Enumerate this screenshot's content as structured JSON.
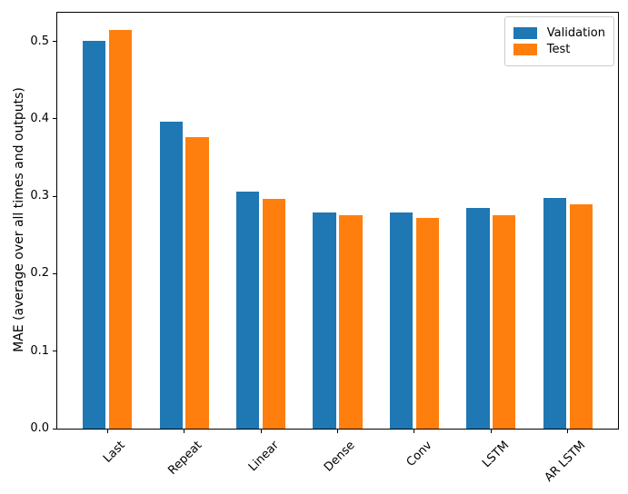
{
  "chart_data": {
    "type": "bar",
    "title": "",
    "xlabel": "",
    "ylabel": "MAE (average over all times and outputs)",
    "categories": [
      "Last",
      "Repeat",
      "Linear",
      "Dense",
      "Conv",
      "LSTM",
      "AR LSTM"
    ],
    "series": [
      {
        "name": "Validation",
        "color": "#1f77b4",
        "values": [
          0.501,
          0.396,
          0.306,
          0.279,
          0.279,
          0.285,
          0.298
        ]
      },
      {
        "name": "Test",
        "color": "#ff7f0e",
        "values": [
          0.515,
          0.376,
          0.297,
          0.275,
          0.272,
          0.276,
          0.29
        ]
      }
    ],
    "ylim": [
      0,
      0.537
    ],
    "yticks": [
      0.0,
      0.1,
      0.2,
      0.3,
      0.4,
      0.5
    ],
    "ytick_labels": [
      "0.0",
      "0.1",
      "0.2",
      "0.3",
      "0.4",
      "0.5"
    ],
    "xtick_rotation": 45,
    "grid": false,
    "legend_position": "upper right",
    "bar_width_units": 0.3,
    "bar_offset_units": 0.17,
    "x_units_total": 7.304,
    "x_first_center_offset_units": 0.652
  },
  "colors": {
    "background": "#ffffff",
    "spine": "#000000",
    "legend_border": "#cccccc",
    "validation": "#1f77b4",
    "test": "#ff7f0e"
  }
}
